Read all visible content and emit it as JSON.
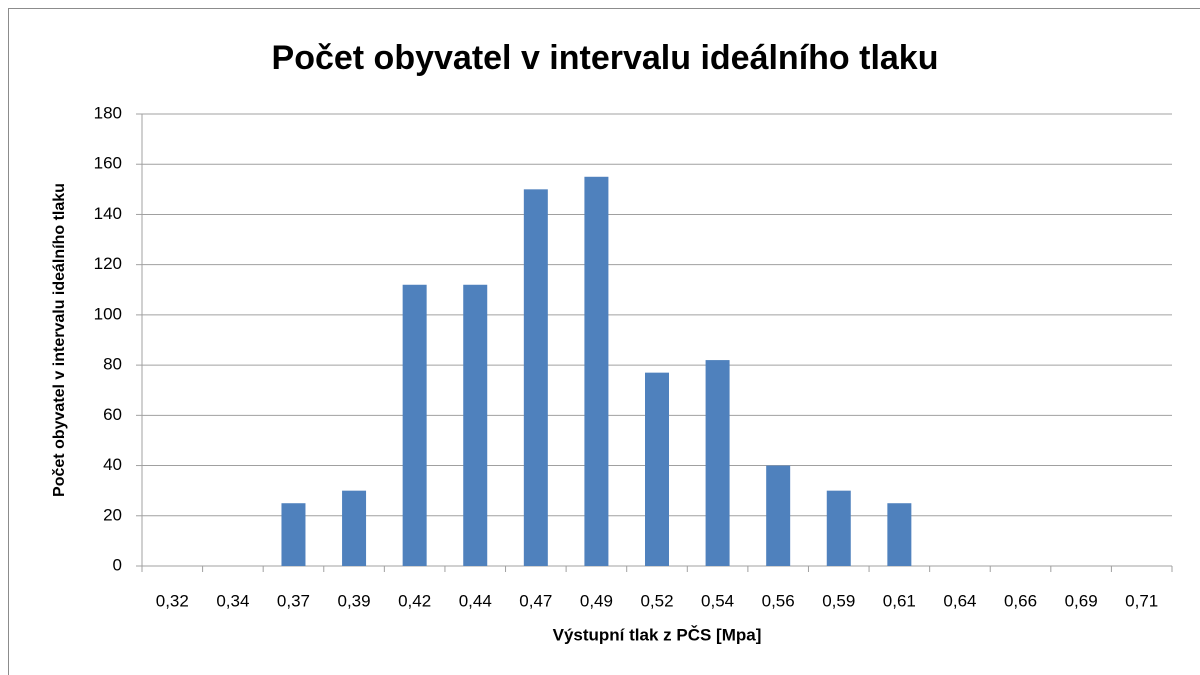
{
  "chart_data": {
    "type": "bar",
    "title": "Počet obyvatel v intervalu ideálního tlaku",
    "x_label": "Výstupní tlak z PČS [Mpa]",
    "y_label": "Počet obyvatel v intervalu ideálního tlaku",
    "categories": [
      "0,32",
      "0,34",
      "0,37",
      "0,39",
      "0,42",
      "0,44",
      "0,47",
      "0,49",
      "0,52",
      "0,54",
      "0,56",
      "0,59",
      "0,61",
      "0,64",
      "0,66",
      "0,69",
      "0,71"
    ],
    "values": [
      0,
      0,
      25,
      30,
      112,
      112,
      150,
      155,
      77,
      82,
      40,
      30,
      25,
      0,
      0,
      0,
      0
    ],
    "color": "#4f81bd",
    "ylim": [
      0,
      180
    ],
    "yticks": [
      0,
      20,
      40,
      60,
      80,
      100,
      120,
      140,
      160,
      180
    ],
    "grid": true
  }
}
